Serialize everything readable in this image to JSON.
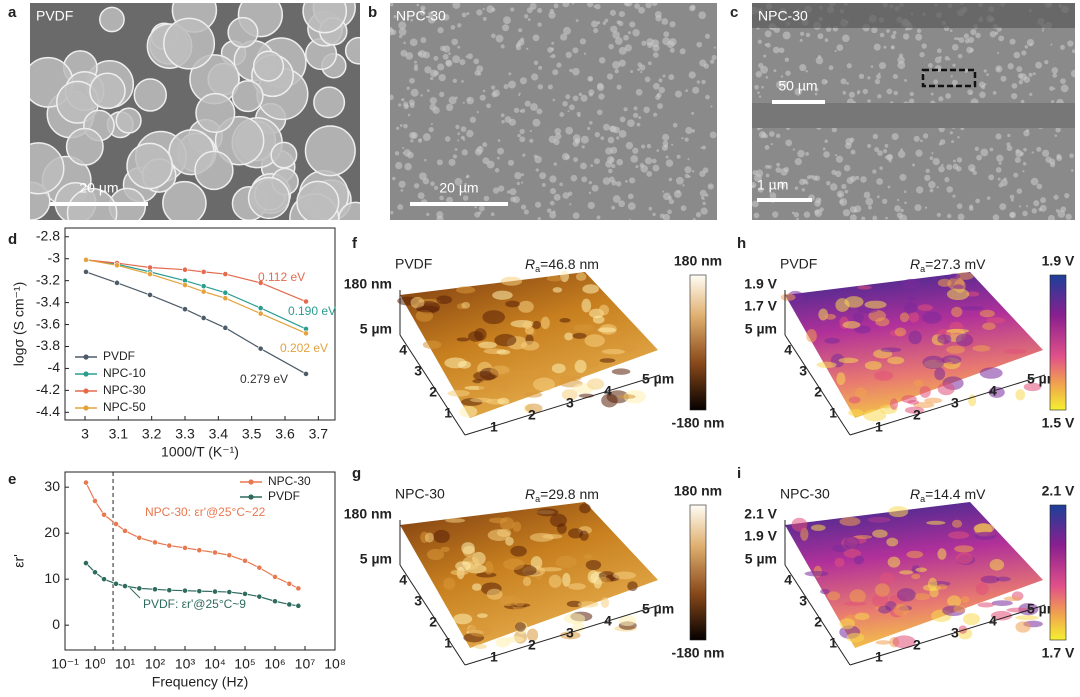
{
  "images": [
    {
      "letter": "a",
      "label": "PVDF",
      "scale": "20 µm"
    },
    {
      "letter": "b",
      "label": "NPC-30",
      "scale": "20 µm"
    },
    {
      "letter": "c",
      "label": "NPC-30",
      "scale": "50 µm",
      "scale2": "1 µm"
    }
  ],
  "chart_data": [
    {
      "type": "line",
      "letter": "d",
      "xlabel": "1000/T (K⁻¹)",
      "ylabel": "logσ (S cm⁻¹)",
      "x": [
        3.003,
        3.096,
        3.195,
        3.3,
        3.356,
        3.421,
        3.527,
        3.663
      ],
      "xlim": [
        2.94,
        3.75
      ],
      "xticks": [
        3.0,
        3.1,
        3.2,
        3.3,
        3.4,
        3.5,
        3.6,
        3.7
      ],
      "ylim": [
        -4.47,
        -2.72
      ],
      "yticks": [
        -2.8,
        -3.0,
        -3.2,
        -3.4,
        -3.6,
        -3.8,
        -4.0,
        -4.2,
        -4.4
      ],
      "legend": "lower left",
      "series": [
        {
          "name": "PVDF",
          "color": "#4d5b68",
          "values": [
            -3.12,
            -3.22,
            -3.33,
            -3.46,
            -3.54,
            -3.63,
            -3.82,
            -4.05
          ]
        },
        {
          "name": "NPC-10",
          "color": "#2a9d8f",
          "values": [
            -3.01,
            -3.05,
            -3.12,
            -3.2,
            -3.25,
            -3.31,
            -3.45,
            -3.64
          ]
        },
        {
          "name": "NPC-30",
          "color": "#e46a4e",
          "values": [
            -3.01,
            -3.04,
            -3.08,
            -3.1,
            -3.12,
            -3.14,
            -3.22,
            -3.39
          ]
        },
        {
          "name": "NPC-50",
          "color": "#e3a23c",
          "values": [
            -3.01,
            -3.06,
            -3.14,
            -3.24,
            -3.3,
            -3.36,
            -3.5,
            -3.68
          ]
        }
      ],
      "annotations": [
        {
          "text": "0.112 eV",
          "color": "#e46a4e"
        },
        {
          "text": "0.190 eV",
          "color": "#2a9d8f"
        },
        {
          "text": "0.202 eV",
          "color": "#e3a23c"
        },
        {
          "text": "0.279 eV",
          "color": "#333333"
        }
      ]
    },
    {
      "type": "line",
      "letter": "e",
      "xlabel": "Frequency (Hz)",
      "ylabel": "εr'",
      "log_x": true,
      "x": [
        0.5,
        1,
        2,
        5,
        10,
        30,
        100,
        300,
        1000,
        3000,
        10000,
        30000,
        100000,
        300000,
        1000000,
        3000000,
        6000000
      ],
      "xlim": [
        0.1,
        100000000
      ],
      "xticks": [
        {
          "value": 0.1,
          "label": "10⁻¹"
        },
        {
          "value": 1,
          "label": "10⁰"
        },
        {
          "value": 10,
          "label": "10¹"
        },
        {
          "value": 100,
          "label": "10²"
        },
        {
          "value": 1000,
          "label": "10³"
        },
        {
          "value": 10000,
          "label": "10⁴"
        },
        {
          "value": 100000,
          "label": "10⁵"
        },
        {
          "value": 1000000,
          "label": "10⁶"
        },
        {
          "value": 10000000,
          "label": "10⁷"
        },
        {
          "value": 100000000,
          "label": "10⁸"
        }
      ],
      "ylim": [
        -5.4,
        33.3
      ],
      "yticks": [
        0,
        10,
        20,
        30
      ],
      "legend": "upper right",
      "vline": 4,
      "series": [
        {
          "name": "NPC-30",
          "color": "#e8784f",
          "values": [
            31,
            27,
            24,
            22,
            20.5,
            19,
            18,
            17.3,
            16.8,
            16.3,
            15.8,
            15.2,
            14,
            12.5,
            10.5,
            9,
            8
          ]
        },
        {
          "name": "PVDF",
          "color": "#2e6b5e",
          "values": [
            13.5,
            11.5,
            10,
            9,
            8.5,
            8,
            7.8,
            7.6,
            7.5,
            7.4,
            7.3,
            7.2,
            6.8,
            6.2,
            5.2,
            4.5,
            4.2
          ]
        }
      ],
      "annotations": [
        {
          "text": "NPC-30: εr'@25°C~22",
          "color": "#e8784f"
        },
        {
          "text": "PVDF: εr'@25°C~9",
          "color": "#2e6b5e"
        }
      ]
    }
  ],
  "afm": [
    {
      "letter": "f",
      "label": "PVDF",
      "ra": "R",
      "ra_sub": "a",
      "ra_value": "=46.8 nm",
      "z_ticks": [
        "180 nm"
      ],
      "depth_ticks": [
        "5 µm",
        "4",
        "3",
        "2",
        "1"
      ],
      "width_ticks": [
        "1",
        "2",
        "3",
        "4",
        "5 µm"
      ],
      "cbar_top": "180 nm",
      "cbar_bottom": "-180 nm"
    },
    {
      "letter": "h",
      "label": "PVDF",
      "ra": "R",
      "ra_sub": "a",
      "ra_value": "=27.3 mV",
      "z_ticks": [
        "1.9 V",
        "1.7 V"
      ],
      "depth_ticks": [
        "5 µm",
        "4",
        "3",
        "2",
        "1"
      ],
      "width_ticks": [
        "1",
        "2",
        "3",
        "4",
        "5 µm"
      ],
      "cbar_top": "1.9 V",
      "cbar_bottom": "1.5 V"
    },
    {
      "letter": "g",
      "label": "NPC-30",
      "ra": "R",
      "ra_sub": "a",
      "ra_value": "=29.8 nm",
      "z_ticks": [
        "180 nm"
      ],
      "depth_ticks": [
        "5 µm",
        "4",
        "3",
        "2",
        "1"
      ],
      "width_ticks": [
        "1",
        "2",
        "3",
        "4",
        "5 µm"
      ],
      "cbar_top": "180 nm",
      "cbar_bottom": "-180 nm"
    },
    {
      "letter": "i",
      "label": "NPC-30",
      "ra": "R",
      "ra_sub": "a",
      "ra_value": "=14.4 mV",
      "z_ticks": [
        "2.1 V",
        "1.9 V"
      ],
      "depth_ticks": [
        "5 µm",
        "4",
        "3",
        "2",
        "1"
      ],
      "width_ticks": [
        "1",
        "2",
        "3",
        "4",
        "5 µm"
      ],
      "cbar_top": "2.1 V",
      "cbar_bottom": "1.7 V"
    }
  ]
}
